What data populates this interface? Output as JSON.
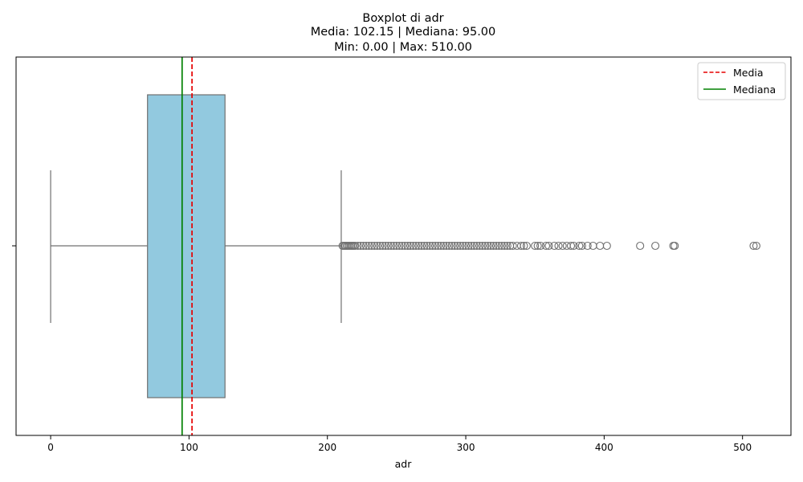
{
  "chart_data": {
    "type": "boxplot",
    "title": "Boxplot di adr",
    "subtitle_lines": [
      "Media: 102.15 | Mediana: 95.00",
      "Min: 0.00 | Max: 510.00"
    ],
    "xlabel": "adr",
    "ylabel": "",
    "xlim": [
      -25,
      535
    ],
    "xticks": [
      0,
      100,
      200,
      300,
      400,
      500
    ],
    "grid": false,
    "orientation": "horizontal",
    "box": {
      "whisker_low": 0,
      "q1": 70,
      "median": 95,
      "q3": 126,
      "whisker_high": 210,
      "fill": "#92c9df",
      "edge": "#707070"
    },
    "outliers": [
      211,
      212,
      213,
      214,
      215,
      216,
      217,
      218,
      219,
      220,
      222,
      224,
      226,
      228,
      230,
      232,
      234,
      236,
      238,
      240,
      242,
      244,
      246,
      248,
      250,
      252,
      254,
      256,
      258,
      260,
      262,
      264,
      266,
      268,
      270,
      272,
      274,
      276,
      278,
      280,
      282,
      284,
      286,
      288,
      290,
      292,
      294,
      296,
      298,
      300,
      302,
      304,
      306,
      308,
      310,
      312,
      314,
      316,
      318,
      320,
      322,
      324,
      326,
      328,
      330,
      332,
      334,
      337,
      340,
      342,
      344,
      350,
      352,
      354,
      358,
      360,
      364,
      367,
      370,
      373,
      376,
      378,
      382,
      384,
      388,
      392,
      397,
      402,
      426,
      437,
      450,
      451,
      508,
      510
    ],
    "lines": [
      {
        "name": "Media",
        "value": 102.15,
        "color": "#e60000",
        "style": "dashed"
      },
      {
        "name": "Mediana",
        "value": 95.0,
        "color": "#008000",
        "style": "solid"
      }
    ],
    "legend_position": "top-right"
  }
}
